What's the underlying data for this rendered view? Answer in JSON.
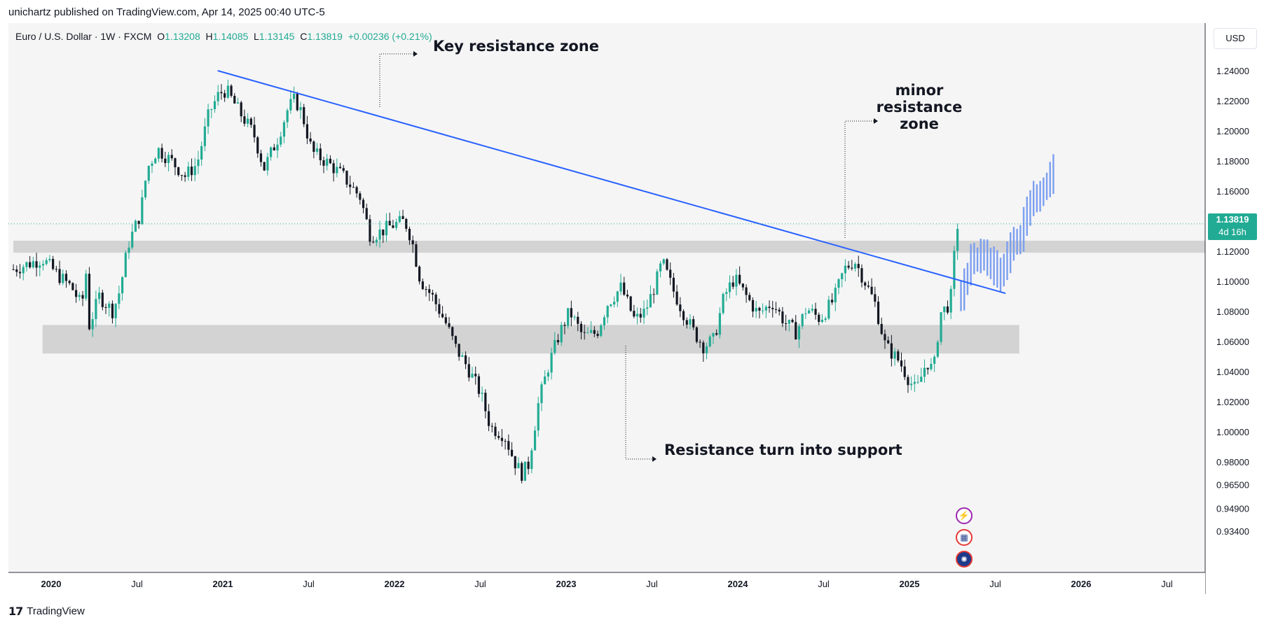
{
  "header": {
    "published_by": "unichartz published on TradingView.com, Apr 14, 2025 00:40 UTC-5"
  },
  "legend": {
    "symbol": "Euro / U.S. Dollar · 1W · FXCM",
    "open_label": "O",
    "open": "1.13208",
    "high_label": "H",
    "high": "1.14085",
    "low_label": "L",
    "low": "1.13145",
    "close_label": "C",
    "close": "1.13819",
    "change": "+0.00236 (+0.21%)"
  },
  "price_axis": {
    "unit": "USD",
    "last_price": "1.13819",
    "countdown": "4d 16h"
  },
  "brand": {
    "logo_text": "17",
    "name": "TradingView"
  },
  "annotations": {
    "key_resistance": "Key resistance zone",
    "minor_resistance_line1": "minor resistance",
    "minor_resistance_line2": "zone",
    "support": "Resistance turn into  support"
  },
  "colors": {
    "up": "#22ab94",
    "down": "#131722",
    "trendline": "#2962ff",
    "projection": "#7b9ef0",
    "zone": "#d3d3d3",
    "price_tag": "#22ab94"
  },
  "icons": [
    "lightning-icon",
    "us-flag-icon",
    "eu-flag-icon"
  ],
  "chart_data": {
    "type": "candlestick",
    "symbol": "EURUSD",
    "timeframe": "1W",
    "ylim": [
      0.932,
      1.262
    ],
    "y_ticks": [
      "1.24000",
      "1.22000",
      "1.20000",
      "1.18000",
      "1.16000",
      "1.14000",
      "1.12000",
      "1.10000",
      "1.08000",
      "1.06000",
      "1.04000",
      "1.02000",
      "1.00000",
      "0.98000",
      "0.96500",
      "0.94900",
      "0.93400"
    ],
    "x_ticks": [
      {
        "label": "2020",
        "t": 2020.0,
        "bold": true
      },
      {
        "label": "Jul",
        "t": 2020.5,
        "bold": false
      },
      {
        "label": "2021",
        "t": 2021.0,
        "bold": true
      },
      {
        "label": "Jul",
        "t": 2021.5,
        "bold": false
      },
      {
        "label": "2022",
        "t": 2022.0,
        "bold": true
      },
      {
        "label": "Jul",
        "t": 2022.5,
        "bold": false
      },
      {
        "label": "2023",
        "t": 2023.0,
        "bold": true
      },
      {
        "label": "Jul",
        "t": 2023.5,
        "bold": false
      },
      {
        "label": "2024",
        "t": 2024.0,
        "bold": true
      },
      {
        "label": "Jul",
        "t": 2024.5,
        "bold": false
      },
      {
        "label": "2025",
        "t": 2025.0,
        "bold": true
      },
      {
        "label": "Jul",
        "t": 2025.5,
        "bold": false
      },
      {
        "label": "2026",
        "t": 2026.0,
        "bold": true
      },
      {
        "label": "Jul",
        "t": 2026.5,
        "bold": false
      }
    ],
    "xlim": [
      2019.78,
      2026.96
    ],
    "path_anchors": [
      [
        2019.78,
        1.108
      ],
      [
        2019.95,
        1.115
      ],
      [
        2020.05,
        1.103
      ],
      [
        2020.12,
        1.096
      ],
      [
        2020.18,
        1.083
      ],
      [
        2020.2,
        1.112
      ],
      [
        2020.22,
        1.07
      ],
      [
        2020.28,
        1.09
      ],
      [
        2020.36,
        1.08
      ],
      [
        2020.4,
        1.094
      ],
      [
        2020.45,
        1.125
      ],
      [
        2020.52,
        1.145
      ],
      [
        2020.56,
        1.175
      ],
      [
        2020.62,
        1.188
      ],
      [
        2020.7,
        1.18
      ],
      [
        2020.78,
        1.17
      ],
      [
        2020.85,
        1.178
      ],
      [
        2020.92,
        1.212
      ],
      [
        2020.98,
        1.225
      ],
      [
        2021.02,
        1.227
      ],
      [
        2021.1,
        1.212
      ],
      [
        2021.18,
        1.198
      ],
      [
        2021.24,
        1.175
      ],
      [
        2021.32,
        1.195
      ],
      [
        2021.38,
        1.215
      ],
      [
        2021.42,
        1.221
      ],
      [
        2021.46,
        1.212
      ],
      [
        2021.52,
        1.186
      ],
      [
        2021.62,
        1.178
      ],
      [
        2021.7,
        1.17
      ],
      [
        2021.8,
        1.156
      ],
      [
        2021.86,
        1.13
      ],
      [
        2021.92,
        1.133
      ],
      [
        2021.98,
        1.137
      ],
      [
        2022.06,
        1.14
      ],
      [
        2022.1,
        1.128
      ],
      [
        2022.15,
        1.101
      ],
      [
        2022.22,
        1.09
      ],
      [
        2022.3,
        1.072
      ],
      [
        2022.36,
        1.055
      ],
      [
        2022.42,
        1.044
      ],
      [
        2022.5,
        1.026
      ],
      [
        2022.56,
        1.003
      ],
      [
        2022.64,
        0.998
      ],
      [
        2022.7,
        0.98
      ],
      [
        2022.74,
        0.972
      ],
      [
        2022.78,
        0.978
      ],
      [
        2022.84,
        1.02
      ],
      [
        2022.9,
        1.045
      ],
      [
        2022.96,
        1.065
      ],
      [
        2023.02,
        1.08
      ],
      [
        2023.1,
        1.063
      ],
      [
        2023.18,
        1.066
      ],
      [
        2023.24,
        1.085
      ],
      [
        2023.32,
        1.096
      ],
      [
        2023.4,
        1.074
      ],
      [
        2023.46,
        1.08
      ],
      [
        2023.52,
        1.098
      ],
      [
        2023.56,
        1.113
      ],
      [
        2023.62,
        1.095
      ],
      [
        2023.68,
        1.08
      ],
      [
        2023.74,
        1.067
      ],
      [
        2023.8,
        1.057
      ],
      [
        2023.86,
        1.061
      ],
      [
        2023.92,
        1.09
      ],
      [
        2023.98,
        1.102
      ],
      [
        2024.05,
        1.09
      ],
      [
        2024.12,
        1.078
      ],
      [
        2024.2,
        1.086
      ],
      [
        2024.28,
        1.072
      ],
      [
        2024.34,
        1.066
      ],
      [
        2024.4,
        1.082
      ],
      [
        2024.48,
        1.075
      ],
      [
        2024.56,
        1.088
      ],
      [
        2024.62,
        1.108
      ],
      [
        2024.68,
        1.114
      ],
      [
        2024.74,
        1.1
      ],
      [
        2024.8,
        1.085
      ],
      [
        2024.86,
        1.057
      ],
      [
        2024.94,
        1.047
      ],
      [
        2025.0,
        1.034
      ],
      [
        2025.04,
        1.027
      ],
      [
        2025.1,
        1.047
      ],
      [
        2025.14,
        1.04
      ],
      [
        2025.18,
        1.079
      ],
      [
        2025.22,
        1.083
      ],
      [
        2025.25,
        1.093
      ],
      [
        2025.27,
        1.136
      ],
      [
        2025.285,
        1.138
      ]
    ],
    "projection_anchors": [
      [
        2025.3,
        1.09
      ],
      [
        2025.36,
        1.112
      ],
      [
        2025.42,
        1.116
      ],
      [
        2025.48,
        1.11
      ],
      [
        2025.52,
        1.1
      ],
      [
        2025.56,
        1.112
      ],
      [
        2025.6,
        1.125
      ],
      [
        2025.64,
        1.127
      ],
      [
        2025.68,
        1.142
      ],
      [
        2025.72,
        1.155
      ],
      [
        2025.76,
        1.157
      ],
      [
        2025.8,
        1.163
      ],
      [
        2025.84,
        1.172
      ]
    ],
    "trendline": [
      [
        2020.97,
        1.24
      ],
      [
        2025.56,
        1.092
      ]
    ],
    "zones": [
      {
        "t0": 2019.78,
        "t1": 2026.9,
        "y_low": 1.119,
        "y_high": 1.127
      },
      {
        "t0": 2019.95,
        "t1": 2025.64,
        "y_low": 1.052,
        "y_high": 1.071
      }
    ]
  }
}
